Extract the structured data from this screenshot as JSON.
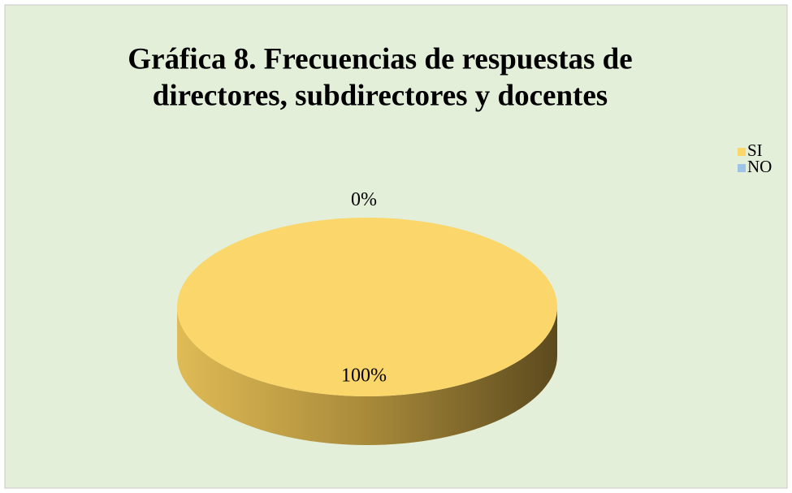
{
  "chart_data": {
    "type": "pie3d",
    "title": [
      "Gráfica 8. Frecuencias de respuestas de",
      "directores, subdirectores y docentes"
    ],
    "categories": [
      "SI",
      "NO"
    ],
    "values": [
      100,
      0
    ],
    "value_labels": [
      "100%",
      "0%"
    ],
    "colors": [
      "#fad66b",
      "#9dc3e6"
    ],
    "legend": "right"
  }
}
